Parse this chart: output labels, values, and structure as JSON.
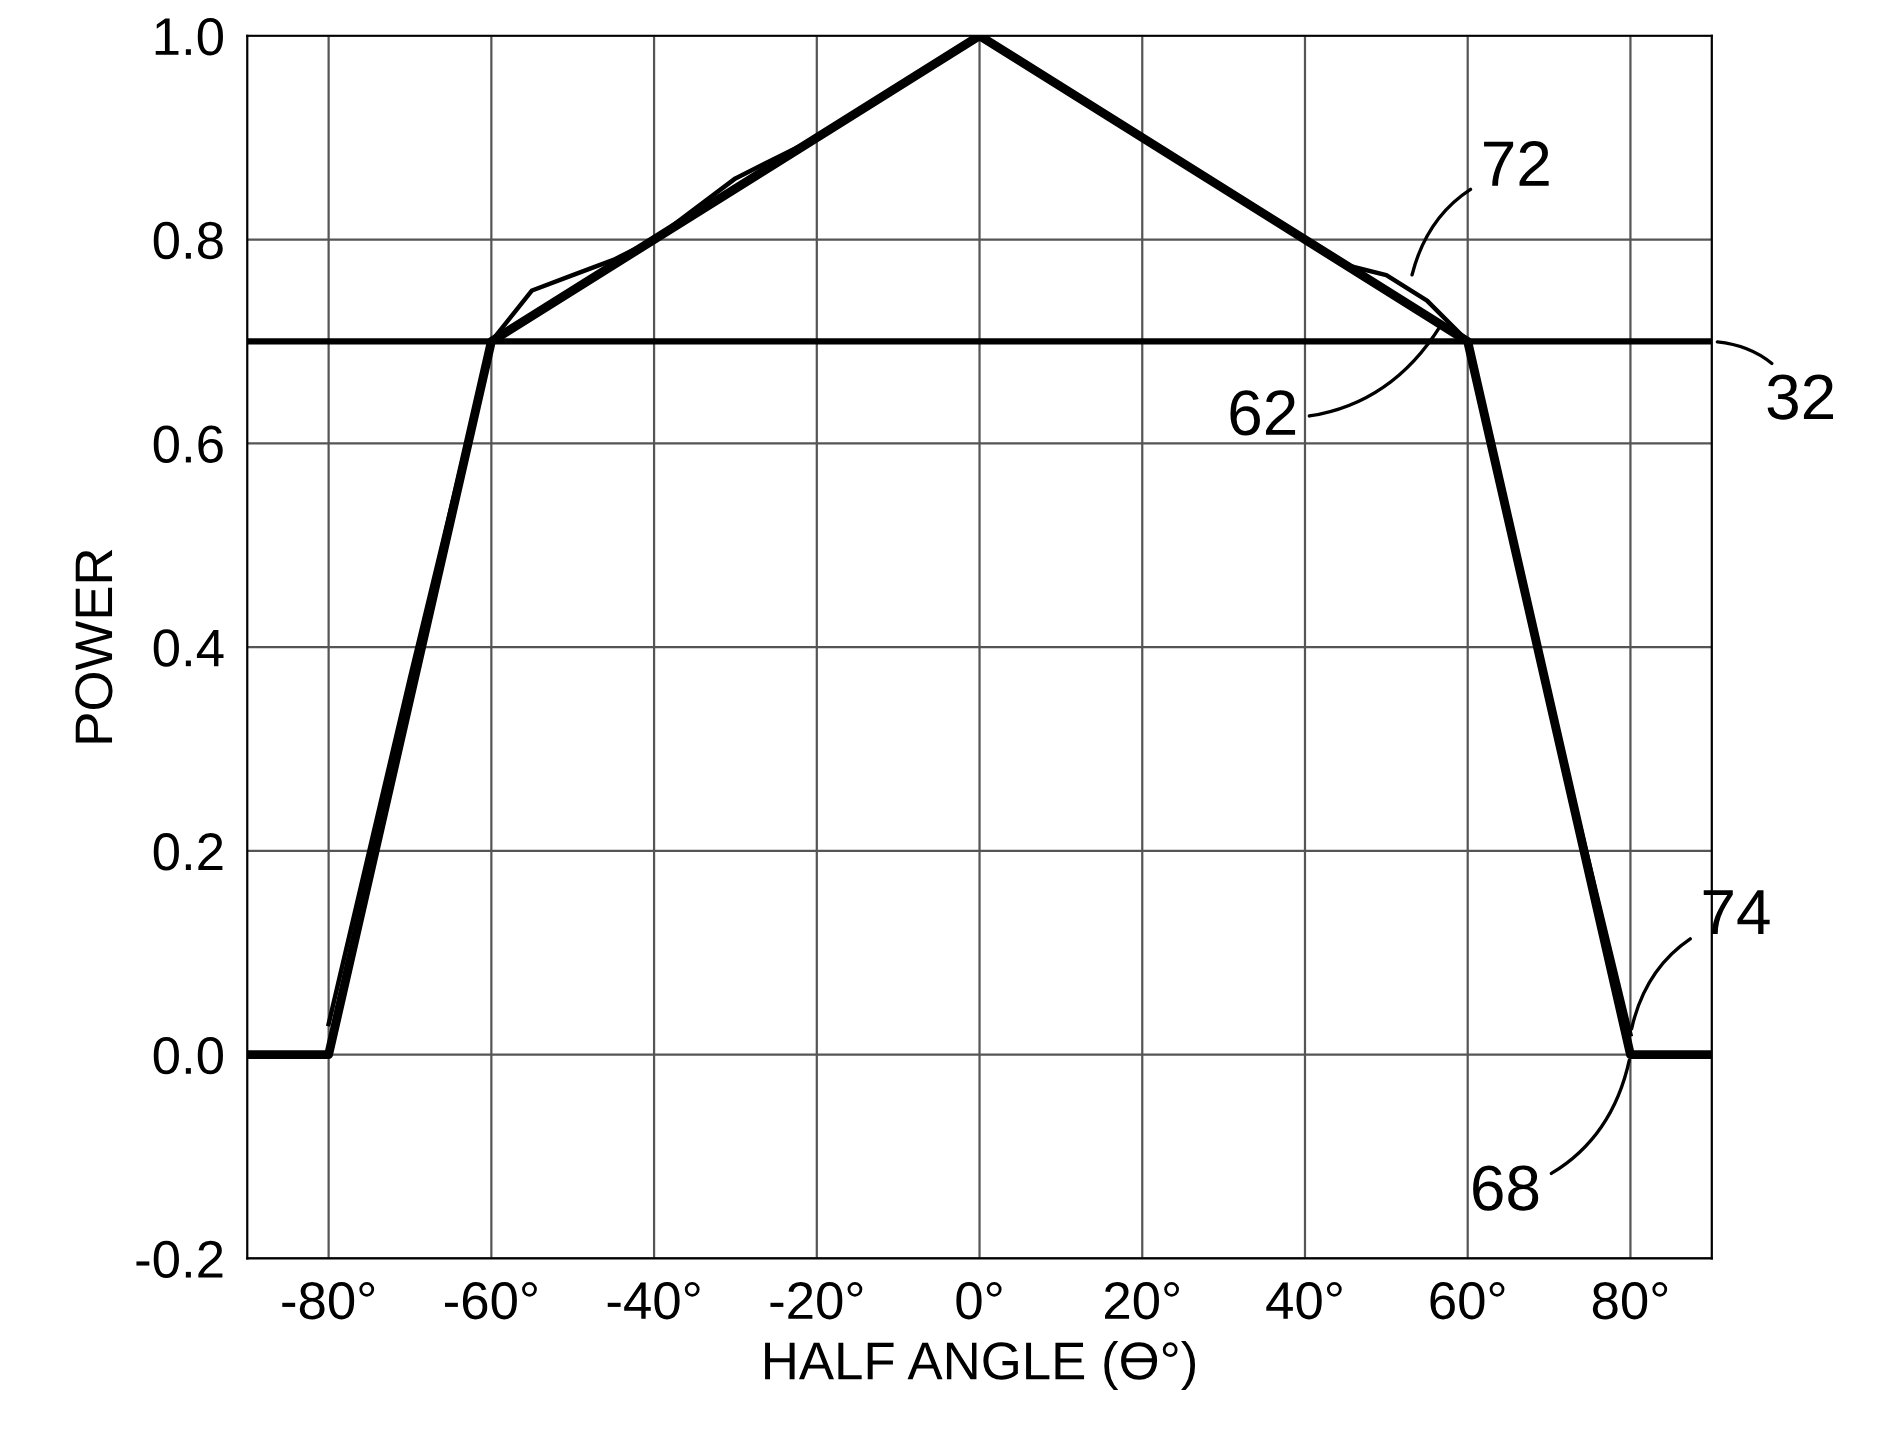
{
  "chart_data": {
    "type": "line",
    "xlabel": "HALF ANGLE (ϴ°)",
    "ylabel": "POWER",
    "series": [
      {
        "color": "#000000",
        "x": [
          -90,
          -80,
          -60,
          0,
          60,
          80,
          90
        ],
        "values": [
          0,
          0,
          0.7,
          1.0,
          0.7,
          0,
          0
        ]
      },
      {
        "color": "#000000",
        "x": [
          -80,
          -70,
          -60,
          -55,
          -50,
          -45,
          -40,
          -30,
          -20,
          -10,
          0,
          10,
          20,
          30,
          40,
          45,
          50,
          55,
          60,
          70,
          80
        ],
        "values": [
          0.03,
          0.37,
          0.7,
          0.75,
          0.765,
          0.78,
          0.8,
          0.86,
          0.9,
          0.95,
          1.0,
          0.95,
          0.9,
          0.85,
          0.8,
          0.775,
          0.765,
          0.74,
          0.7,
          0.35,
          0.02
        ]
      }
    ],
    "ref_lines": [
      {
        "axis": "y",
        "value": 0.7,
        "color": "#000000"
      }
    ],
    "annotations": [
      {
        "text": "72",
        "x": 53,
        "y": 0.76
      },
      {
        "text": "62",
        "x": 57,
        "y": 0.72
      },
      {
        "text": "32",
        "x": 90,
        "y": 0.7
      },
      {
        "text": "74",
        "x": 80,
        "y": 0.02
      },
      {
        "text": "68",
        "x": 80,
        "y": 0
      }
    ],
    "xlim": [
      -90,
      90
    ],
    "ylim": [
      -0.2,
      1.0
    ],
    "xticks": [
      {
        "value": -80,
        "label": "-80°"
      },
      {
        "value": -60,
        "label": "-60°"
      },
      {
        "value": -40,
        "label": "-40°"
      },
      {
        "value": -20,
        "label": "-20°"
      },
      {
        "value": 0,
        "label": "0°"
      },
      {
        "value": 20,
        "label": "20°"
      },
      {
        "value": 40,
        "label": "40°"
      },
      {
        "value": 60,
        "label": "60°"
      },
      {
        "value": 80,
        "label": "80°"
      }
    ],
    "yticks": [
      -0.2,
      {
        "value": 0,
        "label": "0.0"
      },
      0.2,
      0.4,
      0.6,
      0.8,
      {
        "value": 1.0,
        "label": "1.0"
      }
    ],
    "grid": true,
    "legend": false,
    "marker": "none",
    "line_style": "solid"
  }
}
